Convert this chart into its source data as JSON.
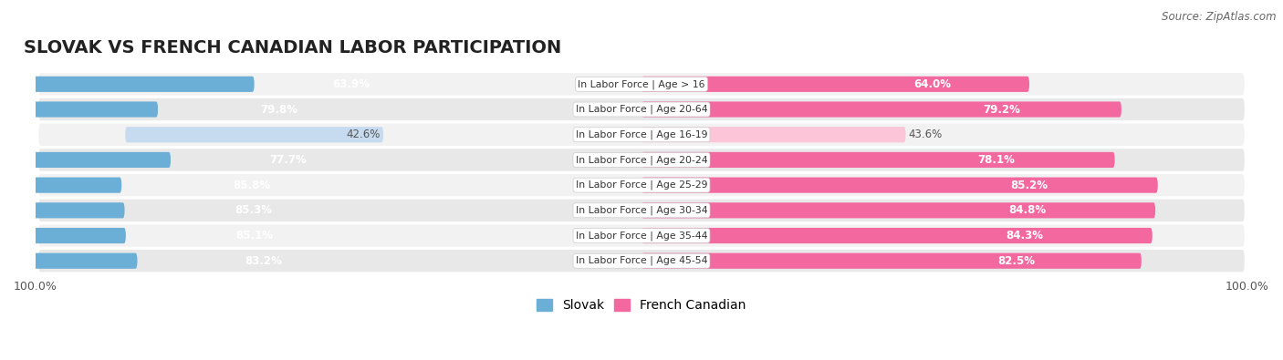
{
  "title": "SLOVAK VS FRENCH CANADIAN LABOR PARTICIPATION",
  "source": "Source: ZipAtlas.com",
  "categories": [
    "In Labor Force | Age > 16",
    "In Labor Force | Age 20-64",
    "In Labor Force | Age 16-19",
    "In Labor Force | Age 20-24",
    "In Labor Force | Age 25-29",
    "In Labor Force | Age 30-34",
    "In Labor Force | Age 35-44",
    "In Labor Force | Age 45-54"
  ],
  "slovak_values": [
    63.9,
    79.8,
    42.6,
    77.7,
    85.8,
    85.3,
    85.1,
    83.2
  ],
  "french_values": [
    64.0,
    79.2,
    43.6,
    78.1,
    85.2,
    84.8,
    84.3,
    82.5
  ],
  "slovak_color": "#6baed6",
  "french_color": "#f468a0",
  "slovak_light_color": "#c6dbef",
  "french_light_color": "#fcc5d8",
  "bg_color": "#ffffff",
  "row_bg_even": "#f2f2f2",
  "row_bg_odd": "#e8e8e8",
  "title_fontsize": 14,
  "label_fontsize": 8.5,
  "value_fontsize": 8.5,
  "tick_fontsize": 9,
  "legend_fontsize": 10
}
